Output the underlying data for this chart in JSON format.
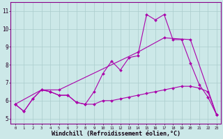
{
  "background_color": "#cce8e8",
  "grid_color": "#aacccc",
  "line_color": "#aa00aa",
  "xlabel": "Windchill (Refroidissement éolien,°C)",
  "xlabel_fontsize": 6.0,
  "ylabel_ticks": [
    5,
    6,
    7,
    8,
    9,
    10,
    11
  ],
  "xlim": [
    -0.5,
    23.5
  ],
  "ylim": [
    4.7,
    11.5
  ],
  "series": [
    {
      "x": [
        0,
        1,
        2,
        3,
        4,
        5,
        6,
        7,
        8,
        9,
        10,
        11,
        12,
        13,
        14,
        15,
        16,
        17,
        18,
        19,
        20,
        21,
        22,
        23
      ],
      "y": [
        5.8,
        5.4,
        6.1,
        6.6,
        6.5,
        6.3,
        6.3,
        5.9,
        5.8,
        5.8,
        6.0,
        6.0,
        6.1,
        6.2,
        6.3,
        6.4,
        6.5,
        6.6,
        6.7,
        6.8,
        6.8,
        6.7,
        6.5,
        5.2
      ]
    },
    {
      "x": [
        0,
        1,
        2,
        3,
        4,
        5,
        6,
        7,
        8,
        9,
        10,
        11,
        12,
        13,
        14,
        15,
        16,
        17,
        18,
        19,
        20,
        21,
        22,
        23
      ],
      "y": [
        5.8,
        5.4,
        6.1,
        6.6,
        6.5,
        6.3,
        6.3,
        5.9,
        5.8,
        6.5,
        7.5,
        8.2,
        7.7,
        8.4,
        8.5,
        10.8,
        10.5,
        10.8,
        9.4,
        9.4,
        8.1,
        6.9,
        6.2,
        5.2
      ]
    },
    {
      "x": [
        0,
        3,
        5,
        14,
        17,
        20,
        23
      ],
      "y": [
        5.8,
        6.6,
        6.6,
        8.7,
        9.5,
        9.4,
        5.2
      ]
    }
  ]
}
